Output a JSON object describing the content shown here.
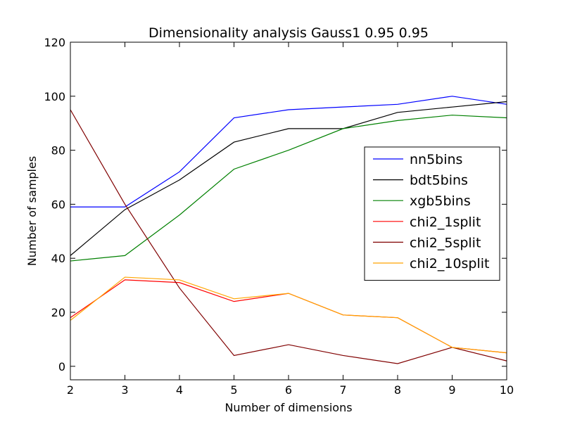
{
  "chart_data": {
    "type": "line",
    "title": "Dimensionality analysis Gauss1 0.95 0.95",
    "xlabel": "Number of dimensions",
    "ylabel": "Number of samples",
    "xlim": [
      2,
      10
    ],
    "ylim": [
      -5,
      120
    ],
    "xticks": [
      2,
      3,
      4,
      5,
      6,
      7,
      8,
      9,
      10
    ],
    "yticks": [
      0,
      20,
      40,
      60,
      80,
      100,
      120
    ],
    "grid": false,
    "legend_position": "center-right",
    "x": [
      2,
      3,
      4,
      5,
      6,
      7,
      8,
      9,
      10
    ],
    "series": [
      {
        "name": "nn5bins",
        "color": "#0000ff",
        "values": [
          59,
          59,
          72,
          92,
          95,
          96,
          97,
          100,
          97
        ]
      },
      {
        "name": "bdt5bins",
        "color": "#000000",
        "values": [
          41,
          58,
          69,
          83,
          88,
          88,
          94,
          96,
          98
        ]
      },
      {
        "name": "xgb5bins",
        "color": "#008000",
        "values": [
          39,
          41,
          56,
          73,
          80,
          88,
          91,
          93,
          92
        ]
      },
      {
        "name": "chi2_1split",
        "color": "#ff0000",
        "values": [
          18,
          32,
          31,
          24,
          27,
          19,
          18,
          7,
          5
        ]
      },
      {
        "name": "chi2_5split",
        "color": "#800000",
        "values": [
          95,
          60,
          29,
          4,
          8,
          4,
          1,
          7,
          2
        ]
      },
      {
        "name": "chi2_10split",
        "color": "#ffa500",
        "values": [
          17,
          33,
          32,
          25,
          27,
          19,
          18,
          7,
          5
        ]
      }
    ]
  }
}
